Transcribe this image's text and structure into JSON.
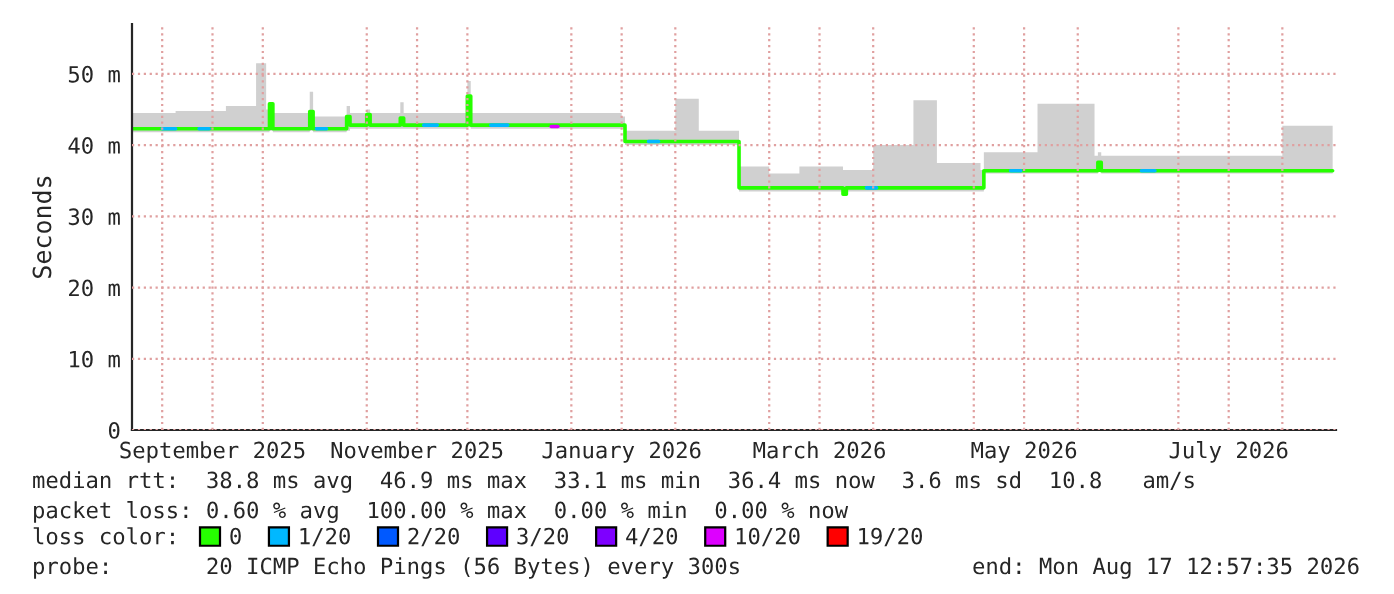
{
  "chart_data": {
    "type": "line",
    "ylabel": "Seconds",
    "legend_title": "loss color:",
    "legend": "bottom",
    "grid": true,
    "line_style": "solid",
    "marker": "none",
    "xlim": [
      "2025-08-23",
      "2026-08-17"
    ],
    "xticks": [
      {
        "value": "2025-09-01",
        "label": null
      },
      {
        "value": "2025-09-16",
        "label": "September 2025"
      },
      {
        "value": "2025-10-01",
        "label": null
      },
      {
        "value": "2025-11-01",
        "label": null
      },
      {
        "value": "2025-11-16",
        "label": "November 2025"
      },
      {
        "value": "2025-12-01",
        "label": null
      },
      {
        "value": "2026-01-01",
        "label": null
      },
      {
        "value": "2026-01-16",
        "label": "January 2026"
      },
      {
        "value": "2026-02-01",
        "label": null
      },
      {
        "value": "2026-03-01",
        "label": null
      },
      {
        "value": "2026-03-16",
        "label": "March 2026"
      },
      {
        "value": "2026-04-01",
        "label": null
      },
      {
        "value": "2026-05-01",
        "label": null
      },
      {
        "value": "2026-05-16",
        "label": "May 2026"
      },
      {
        "value": "2026-06-01",
        "label": null
      },
      {
        "value": "2026-07-01",
        "label": null
      },
      {
        "value": "2026-07-16",
        "label": "July 2026"
      },
      {
        "value": "2026-08-01",
        "label": null
      }
    ],
    "ylim": [
      0,
      57
    ],
    "yticks": [
      0,
      {
        "value": 10,
        "label": "10 m"
      },
      {
        "value": 20,
        "label": "20 m"
      },
      {
        "value": 30,
        "label": "30 m"
      },
      {
        "value": 40,
        "label": "40 m"
      },
      {
        "value": 50,
        "label": "50 m"
      }
    ],
    "series": [
      {
        "name": "0",
        "color": "#26ff00",
        "x": [
          "2025-08-23",
          "2025-09-05",
          "2025-09-20",
          "2025-09-29",
          "2025-10-02",
          "2025-10-03",
          "2025-10-04",
          "2025-10-15",
          "2025-10-16",
          "2025-10-26",
          "2025-10-27",
          "2025-11-01",
          "2025-11-02",
          "2025-11-11",
          "2025-11-12",
          "2025-12-01",
          "2025-12-02",
          "2025-12-20",
          "2026-01-16",
          "2026-01-17",
          "2026-02-01",
          "2026-02-08",
          "2026-02-19",
          "2026-02-20",
          "2026-03-01",
          "2026-03-10",
          "2026-03-23",
          "2026-03-24",
          "2026-04-01",
          "2026-04-13",
          "2026-04-20",
          "2026-05-03",
          "2026-05-04",
          "2026-05-20",
          "2026-06-06",
          "2026-06-07",
          "2026-06-08",
          "2026-07-16",
          "2026-08-01",
          "2026-08-16"
        ],
        "values": [
          42.3,
          42.3,
          42.3,
          42.3,
          42.3,
          45.8,
          42.3,
          44.7,
          42.3,
          44,
          42.8,
          44.3,
          42.8,
          43.8,
          42.8,
          46.9,
          42.8,
          42.8,
          42.8,
          40.5,
          40.5,
          40.5,
          40.5,
          34,
          34,
          34,
          33.1,
          34,
          34,
          34,
          34,
          34,
          36.4,
          36.4,
          36.4,
          37.6,
          36.4,
          36.4,
          36.4,
          36.4
        ],
        "lower": [
          41.8,
          41.8,
          41.8,
          41.8,
          41.8,
          42,
          41.8,
          42,
          41.8,
          42,
          42.3,
          42.3,
          42.3,
          42.3,
          42.3,
          42.5,
          42.3,
          42.3,
          42.3,
          40,
          40,
          40,
          40,
          33.5,
          33.5,
          33.5,
          33,
          33.5,
          33.5,
          33.5,
          33.5,
          33.5,
          36,
          36,
          36,
          36.5,
          36,
          36,
          36,
          36
        ],
        "upper": [
          44.5,
          44.8,
          45.5,
          51.5,
          45,
          46,
          44.5,
          47.5,
          44,
          45.5,
          44.5,
          45,
          44.5,
          46,
          44.5,
          49,
          44.5,
          44.5,
          44,
          42,
          46.5,
          42,
          42,
          37,
          36,
          37,
          36.5,
          36.5,
          40,
          46.3,
          37.5,
          36.5,
          39,
          45.8,
          38.5,
          39,
          38.5,
          38.5,
          42.7,
          38
        ]
      },
      {
        "name": "1/20",
        "color": "#00b8ff",
        "x": [
          "2025-09-01",
          "2025-09-05",
          "2025-09-06",
          "2025-09-12",
          "2025-09-15",
          "2025-09-16",
          "2025-10-17",
          "2025-10-20",
          "2025-10-21",
          "2025-11-18",
          "2025-11-22",
          "2025-11-23",
          "2025-12-08",
          "2025-12-13",
          "2025-12-14",
          "2026-01-24",
          "2026-01-27",
          "2026-01-28",
          "2026-03-30",
          "2026-04-02",
          "2026-04-03",
          "2026-05-12",
          "2026-05-15",
          "2026-05-16",
          "2026-06-20",
          "2026-06-24"
        ],
        "values": [
          42.3,
          42.3,
          null,
          42.3,
          42.3,
          null,
          42.3,
          42.3,
          null,
          42.8,
          42.8,
          null,
          42.8,
          42.8,
          null,
          40.5,
          40.5,
          null,
          34,
          34,
          null,
          36.4,
          36.4,
          null,
          36.4,
          36.4
        ]
      },
      {
        "name": "2/20",
        "color": "#0059ff"
      },
      {
        "name": "3/20",
        "color": "#5e00ff"
      },
      {
        "name": "4/20",
        "color": "#7e00ff"
      },
      {
        "name": "10/20",
        "color": "#dd00ff",
        "x": [
          "2025-12-26",
          "2025-12-28"
        ],
        "values": [
          42.6,
          42.6
        ]
      },
      {
        "name": "19/20",
        "color": "#ff0000"
      }
    ],
    "annotations": [
      "median rtt:  38.8 ms avg  46.9 ms max  33.1 ms min  36.4 ms now  3.6 ms sd  10.8   am/s",
      "packet loss: 0.60 % avg  100.00 % max  0.00 % min  0.00 % now",
      "probe:       20 ICMP Echo Pings (56 Bytes) every 300s",
      "end: Mon Aug 17 12:57:35 2026"
    ]
  }
}
